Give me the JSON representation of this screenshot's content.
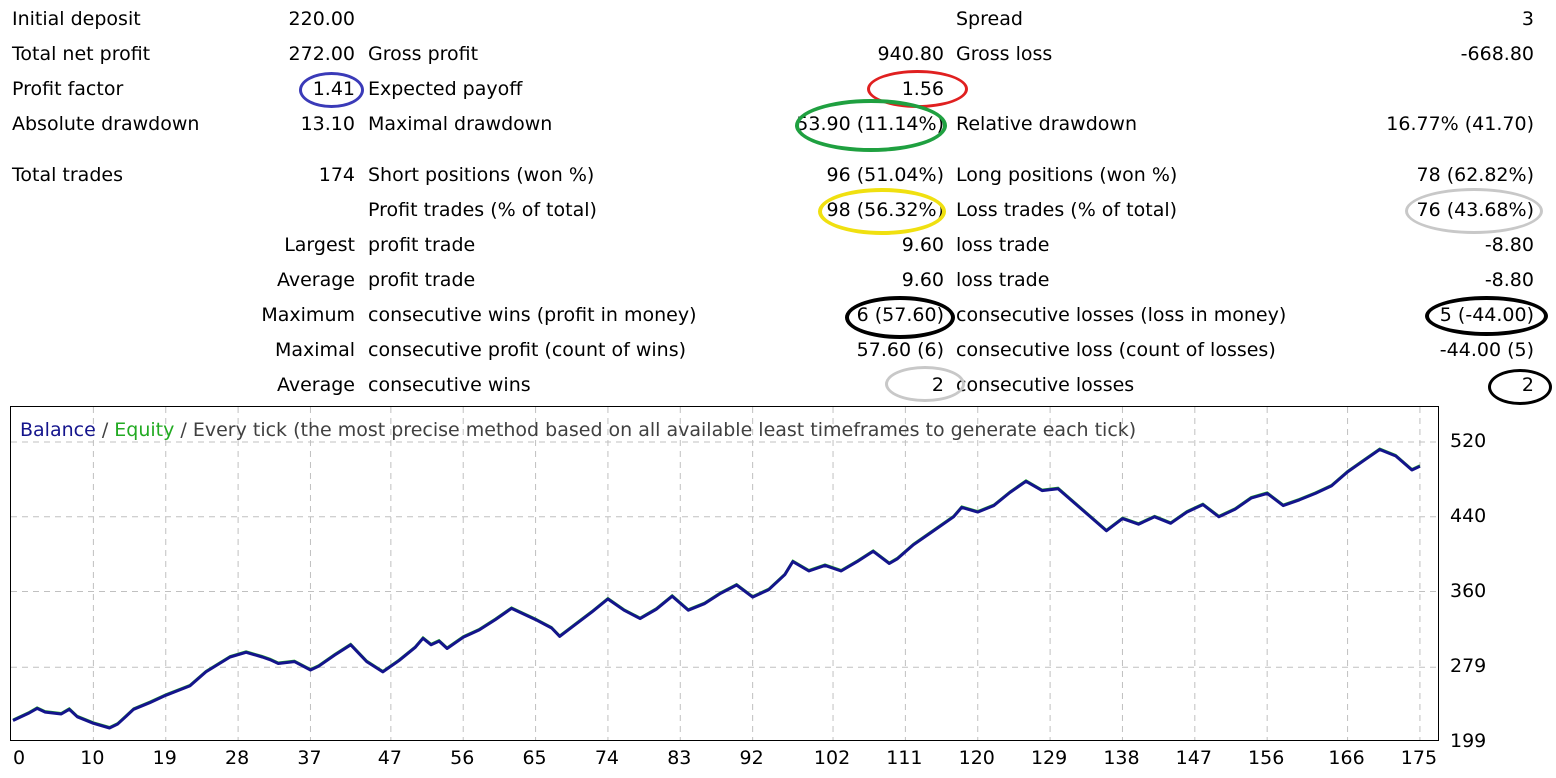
{
  "report": {
    "initial_deposit": {
      "label": "Initial deposit",
      "value": "220.00"
    },
    "spread": {
      "label": "Spread",
      "value": "3"
    },
    "total_net_profit": {
      "label": "Total net profit",
      "value": "272.00"
    },
    "gross_profit": {
      "label": "Gross profit",
      "value": "940.80"
    },
    "gross_loss": {
      "label": "Gross loss",
      "value": "-668.80"
    },
    "profit_factor": {
      "label": "Profit factor",
      "value": "1.41"
    },
    "expected_payoff": {
      "label": "Expected payoff",
      "value": "1.56"
    },
    "absolute_drawdown": {
      "label": "Absolute drawdown",
      "value": "13.10"
    },
    "maximal_drawdown": {
      "label": "Maximal drawdown",
      "value": "53.90 (11.14%)"
    },
    "relative_drawdown": {
      "label": "Relative drawdown",
      "value": "16.77% (41.70)"
    },
    "total_trades": {
      "label": "Total trades",
      "value": "174"
    },
    "short_positions": {
      "label": "Short positions (won %)",
      "value": "96 (51.04%)"
    },
    "long_positions": {
      "label": "Long positions (won %)",
      "value": "78 (62.82%)"
    },
    "profit_trades": {
      "label": "Profit trades (% of total)",
      "value": "98 (56.32%)"
    },
    "loss_trades": {
      "label": "Loss trades (% of total)",
      "value": "76 (43.68%)"
    },
    "largest": {
      "label": "Largest",
      "profit_label": "profit trade",
      "profit_value": "9.60",
      "loss_label": "loss trade",
      "loss_value": "-8.80"
    },
    "average": {
      "label": "Average",
      "profit_label": "profit trade",
      "profit_value": "9.60",
      "loss_label": "loss trade",
      "loss_value": "-8.80"
    },
    "maximum": {
      "label": "Maximum",
      "wins_label": "consecutive wins (profit in money)",
      "wins_value": "6 (57.60)",
      "losses_label": "consecutive losses (loss in money)",
      "losses_value": "5 (-44.00)"
    },
    "maximal": {
      "label": "Maximal",
      "profit_label": "consecutive profit (count of wins)",
      "profit_value": "57.60 (6)",
      "loss_label": "consecutive loss (count of losses)",
      "loss_value": "-44.00 (5)"
    },
    "average_consecutive": {
      "label": "Average",
      "wins_label": "consecutive wins",
      "wins_value": "2",
      "losses_label": "consecutive losses",
      "losses_value": "2"
    }
  },
  "annotations": {
    "profit_factor_color": "#3a3ab8",
    "expected_payoff_color": "#e02020",
    "maximal_drawdown_color": "#1fa040",
    "profit_trades_color": "#f0e010",
    "loss_trades_color": "#c8c8c8",
    "max_consecutive_color": "#000000",
    "avg_wins_color": "#c8c8c8",
    "avg_losses_color": "#000000"
  },
  "chart_legend": {
    "balance": "Balance",
    "sep1": " / ",
    "equity": "Equity",
    "sep2": " / ",
    "method": "Every tick (the most precise method based on all available least timeframes to generate each tick)"
  },
  "colors": {
    "balance": "#14148c",
    "equity": "#22aa22",
    "grid": "#c0c0c0",
    "legend_text": "#404040"
  },
  "chart_data": {
    "type": "line",
    "title": "Balance / Equity / Every tick (the most precise method based on all available least timeframes to generate each tick)",
    "xlabel": "",
    "ylabel": "",
    "x_ticks": [
      "0",
      "10",
      "19",
      "28",
      "37",
      "47",
      "56",
      "65",
      "74",
      "83",
      "92",
      "102",
      "111",
      "120",
      "129",
      "138",
      "147",
      "156",
      "166",
      "175"
    ],
    "y_ticks": [
      "520",
      "440",
      "360",
      "279",
      "199"
    ],
    "ylim": [
      199,
      535
    ],
    "xlim": [
      0,
      177
    ],
    "grid": true,
    "series": [
      {
        "name": "Balance",
        "x": [
          0,
          2,
          3,
          4,
          6,
          7,
          8,
          10,
          12,
          13,
          14,
          15,
          17,
          19,
          22,
          24,
          27,
          29,
          31,
          32,
          33,
          35,
          37,
          38,
          40,
          42,
          44,
          46,
          48,
          50,
          51,
          52,
          53,
          54,
          56,
          58,
          60,
          62,
          65,
          67,
          68,
          70,
          72,
          74,
          76,
          78,
          80,
          82,
          84,
          86,
          88,
          90,
          92,
          94,
          96,
          97,
          99,
          101,
          103,
          105,
          107,
          109,
          110,
          112,
          114,
          117,
          118,
          120,
          122,
          124,
          126,
          128,
          130,
          132,
          134,
          136,
          138,
          140,
          142,
          144,
          146,
          148,
          150,
          152,
          154,
          156,
          158,
          160,
          162,
          164,
          166,
          168,
          170,
          172,
          174,
          175
        ],
        "y": [
          222,
          230,
          235,
          231,
          229,
          234,
          226,
          219,
          214,
          218,
          226,
          234,
          241,
          249,
          259,
          274,
          290,
          295,
          290,
          287,
          283,
          285,
          276,
          280,
          292,
          303,
          285,
          274,
          286,
          300,
          310,
          303,
          307,
          299,
          311,
          319,
          330,
          342,
          330,
          321,
          312,
          325,
          338,
          352,
          340,
          331,
          341,
          355,
          340,
          347,
          358,
          367,
          354,
          362,
          378,
          392,
          382,
          388,
          382,
          392,
          403,
          390,
          395,
          410,
          422,
          440,
          450,
          445,
          452,
          466,
          478,
          468,
          470,
          455,
          440,
          425,
          438,
          432,
          440,
          433,
          445,
          453,
          440,
          448,
          460,
          465,
          452,
          458,
          465,
          473,
          488,
          500,
          512,
          505,
          490,
          494
        ]
      }
    ]
  }
}
